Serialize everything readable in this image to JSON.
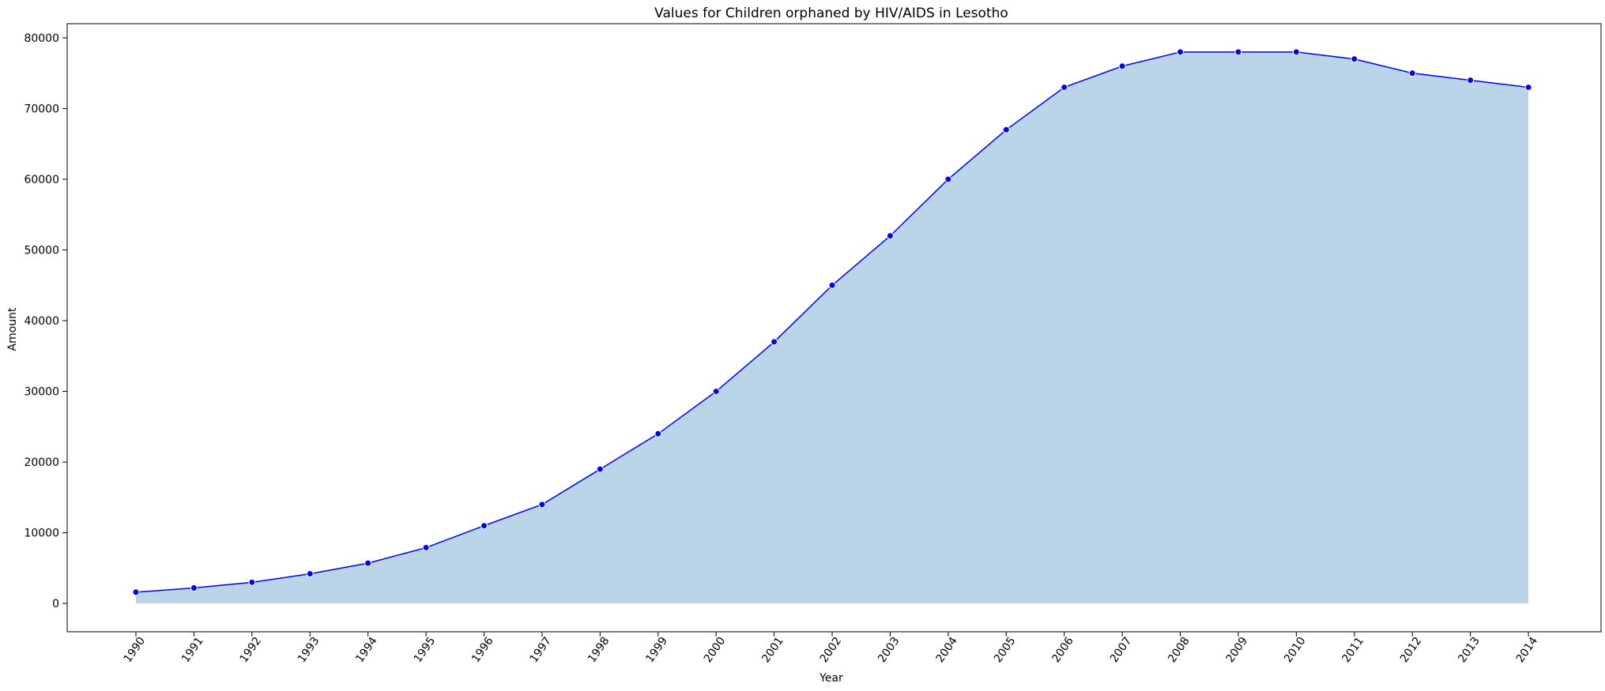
{
  "chart_data": {
    "type": "area",
    "title": "Values for Children orphaned by HIV/AIDS in Lesotho",
    "xlabel": "Year",
    "ylabel": "Amount",
    "x": [
      "1990",
      "1991",
      "1992",
      "1993",
      "1994",
      "1995",
      "1996",
      "1997",
      "1998",
      "1999",
      "2000",
      "2001",
      "2002",
      "2003",
      "2004",
      "2005",
      "2006",
      "2007",
      "2008",
      "2009",
      "2010",
      "2011",
      "2012",
      "2013",
      "2014"
    ],
    "series": [
      {
        "values": [
          1600,
          2200,
          3000,
          4200,
          5700,
          7900,
          11000,
          14000,
          19000,
          24000,
          30000,
          37000,
          45000,
          52000,
          60000,
          67000,
          73000,
          76000,
          78000,
          78000,
          78000,
          77000,
          75000,
          74000,
          73000
        ],
        "line_color": "#0000ff",
        "fill_color": "#bad5e9"
      }
    ],
    "ylim": [
      -4000,
      82000
    ],
    "yticks": [
      0,
      10000,
      20000,
      30000,
      40000,
      50000,
      60000,
      70000,
      80000
    ],
    "grid": false,
    "legend": "none"
  }
}
